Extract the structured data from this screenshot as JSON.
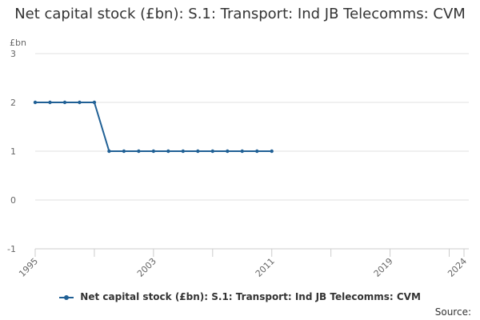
{
  "chart_data": {
    "type": "line",
    "title": "Net capital stock (£bn): S.1: Transport: Ind JB Telecomms: CVM",
    "ylabel": "£bn",
    "xlabel": "",
    "x": [
      1995,
      1996,
      1997,
      1998,
      1999,
      2000,
      2001,
      2002,
      2003,
      2004,
      2005,
      2006,
      2007,
      2008,
      2009,
      2010,
      2011
    ],
    "series": [
      {
        "name": "Net capital stock (£bn): S.1: Transport: Ind JB Telecomms: CVM",
        "values": [
          2,
          2,
          2,
          2,
          2,
          1,
          1,
          1,
          1,
          1,
          1,
          1,
          1,
          1,
          1,
          1,
          1
        ],
        "color": "#206095"
      }
    ],
    "xlim": [
      1995,
      2024
    ],
    "ylim": [
      -1,
      3
    ],
    "x_tick_labels": [
      "1995",
      "2003",
      "2011",
      "2019",
      "2024"
    ],
    "y_tick_labels": [
      "-1",
      "0",
      "1",
      "2",
      "3"
    ],
    "grid": true,
    "legend_position": "bottom"
  },
  "source_label": "Source:"
}
